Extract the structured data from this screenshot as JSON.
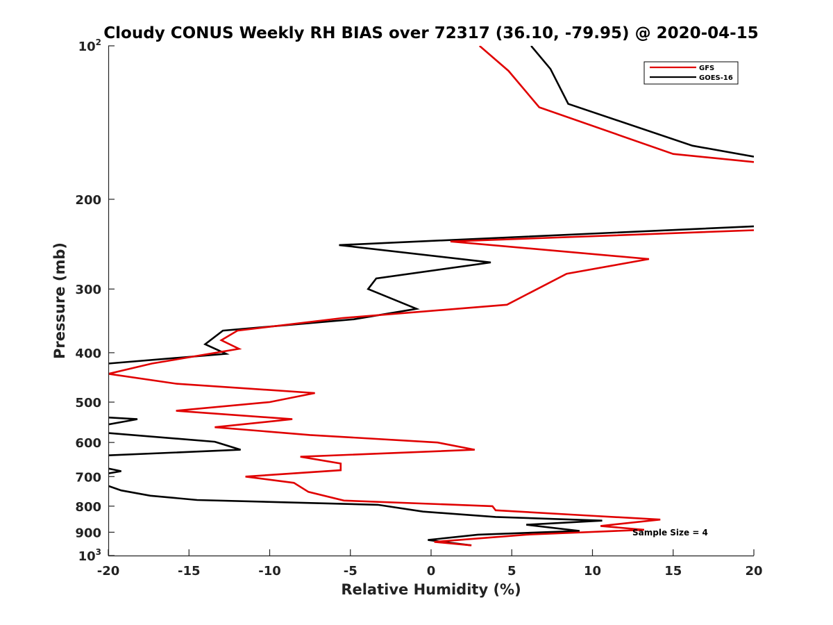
{
  "chart_data": {
    "type": "line",
    "title": "Cloudy CONUS Weekly RH BIAS over 72317 (36.10, -79.95) @ 2020-04-15",
    "xlabel": "Relative Humidity (%)",
    "ylabel": "Pressure (mb)",
    "xlim": [
      -20,
      20
    ],
    "ylim": [
      100,
      1000
    ],
    "y_scale": "log",
    "y_reversed": true,
    "grid": false,
    "legend_position": "top-right",
    "x_ticks": [
      "-20",
      "-15",
      "-10",
      "-5",
      "0",
      "5",
      "10",
      "15",
      "20"
    ],
    "y_ticks": [
      {
        "value": 100,
        "base": "10",
        "exp": "2"
      },
      {
        "value": 200,
        "label": "200"
      },
      {
        "value": 300,
        "label": "300"
      },
      {
        "value": 400,
        "label": "400"
      },
      {
        "value": 500,
        "label": "500"
      },
      {
        "value": 600,
        "label": "600"
      },
      {
        "value": 700,
        "label": "700"
      },
      {
        "value": 800,
        "label": "800"
      },
      {
        "value": 900,
        "label": "900"
      },
      {
        "value": 1000,
        "base": "10",
        "exp": "3"
      }
    ],
    "annotation": "Sample Size = 4",
    "series": [
      {
        "name": "GFS",
        "color": "#e00000",
        "points": [
          [
            3.0,
            100
          ],
          [
            4.8,
            112
          ],
          [
            6.7,
            132
          ],
          [
            15.0,
            163
          ],
          [
            20.0,
            169
          ],
          [
            null,
            null
          ],
          [
            20.0,
            230
          ],
          [
            1.2,
            242
          ],
          [
            13.5,
            262
          ],
          [
            8.4,
            280
          ],
          [
            4.7,
            322
          ],
          [
            -5.5,
            342
          ],
          [
            -12.0,
            362
          ],
          [
            -13.0,
            378
          ],
          [
            -11.9,
            393
          ],
          [
            -17.3,
            420
          ],
          [
            -20.0,
            440
          ],
          [
            -15.8,
            460
          ],
          [
            -7.2,
            480
          ],
          [
            -10.0,
            500
          ],
          [
            -15.8,
            520
          ],
          [
            -8.6,
            540
          ],
          [
            -13.4,
            560
          ],
          [
            -7.5,
            580
          ],
          [
            0.4,
            600
          ],
          [
            2.7,
            620
          ],
          [
            -8.1,
            640
          ],
          [
            -5.6,
            660
          ],
          [
            -5.6,
            680
          ],
          [
            -11.5,
            700
          ],
          [
            -8.5,
            720
          ],
          [
            -7.6,
            750
          ],
          [
            -5.4,
            780
          ],
          [
            3.8,
            800
          ],
          [
            4.0,
            815
          ],
          [
            9.8,
            835
          ],
          [
            14.2,
            850
          ],
          [
            10.5,
            875
          ],
          [
            13.2,
            890
          ],
          [
            5.9,
            910
          ],
          [
            0.2,
            940
          ],
          [
            2.5,
            955
          ]
        ]
      },
      {
        "name": "GOES-16",
        "color": "#000000",
        "points": [
          [
            6.2,
            100
          ],
          [
            7.4,
            111
          ],
          [
            8.5,
            130
          ],
          [
            16.2,
            157
          ],
          [
            20.0,
            165
          ],
          [
            null,
            null
          ],
          [
            20.0,
            226
          ],
          [
            -5.7,
            246
          ],
          [
            3.7,
            266
          ],
          [
            -3.4,
            286
          ],
          [
            -3.9,
            300
          ],
          [
            -0.9,
            328
          ],
          [
            -4.8,
            344
          ],
          [
            -12.9,
            362
          ],
          [
            -14.0,
            385
          ],
          [
            -12.7,
            402
          ],
          [
            -20.0,
            420
          ],
          [
            null,
            null
          ],
          [
            -20.0,
            536
          ],
          [
            -18.2,
            540
          ],
          [
            -20.0,
            553
          ],
          [
            null,
            null
          ],
          [
            -20.0,
            575
          ],
          [
            -13.4,
            598
          ],
          [
            -11.8,
            620
          ],
          [
            -20.0,
            636
          ],
          [
            null,
            null
          ],
          [
            -20.0,
            675
          ],
          [
            -19.2,
            683
          ],
          [
            -20.0,
            690
          ],
          [
            null,
            null
          ],
          [
            -20.0,
            730
          ],
          [
            -19.2,
            745
          ],
          [
            -17.4,
            763
          ],
          [
            -14.5,
            778
          ],
          [
            -3.3,
            795
          ],
          [
            -0.5,
            820
          ],
          [
            4.0,
            840
          ],
          [
            10.6,
            854
          ],
          [
            5.9,
            870
          ],
          [
            9.2,
            895
          ],
          [
            2.9,
            910
          ],
          [
            -0.2,
            932
          ],
          [
            2.5,
            955
          ]
        ]
      }
    ]
  }
}
